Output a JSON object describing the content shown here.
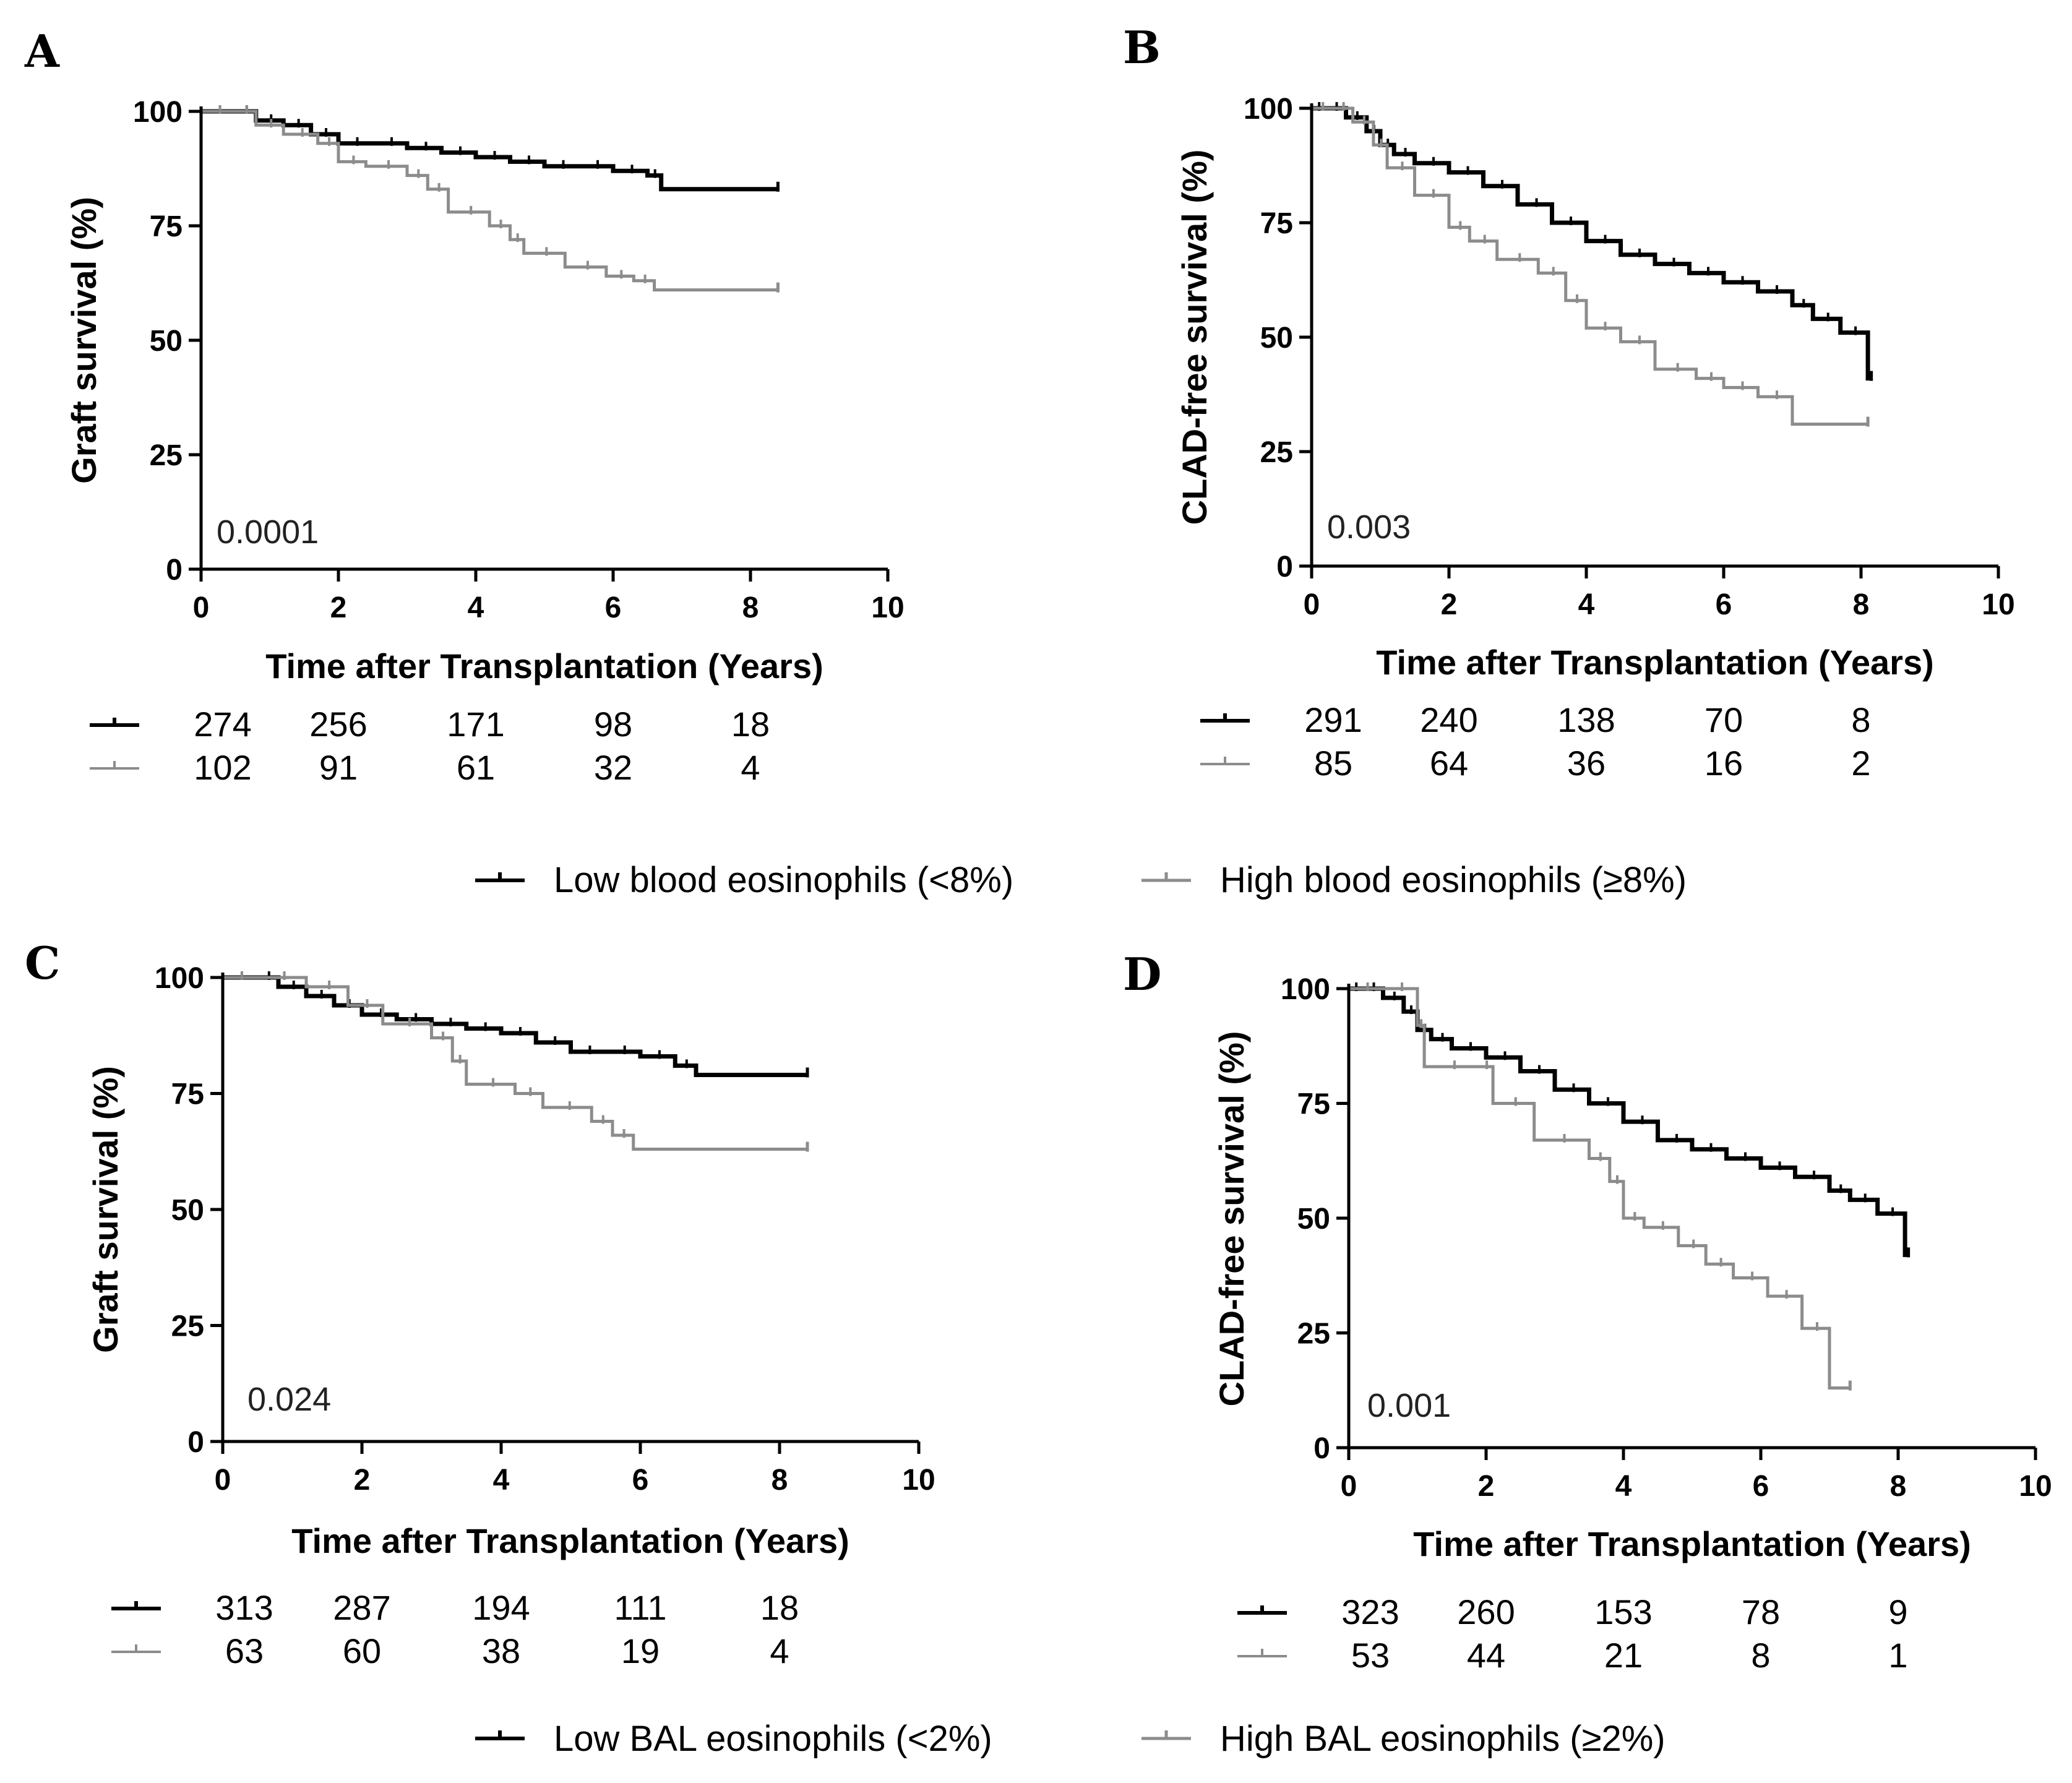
{
  "series_styles": {
    "low": {
      "color": "#000000",
      "width": 7
    },
    "high": {
      "color": "#8c8c8c",
      "width": 5
    }
  },
  "legends": [
    {
      "low_label": "Low blood eosinophils (<8%)",
      "high_label": "High blood eosinophils (≥8%)"
    },
    {
      "low_label": "Low BAL eosinophils (<2%)",
      "high_label": "High BAL eosinophils (≥2%)"
    }
  ],
  "chart_data": [
    {
      "panel": "A",
      "type": "line",
      "step": true,
      "xlabel": "Time after Transplantation (Years)",
      "ylabel": "Graft survival (%)",
      "xlim": [
        0,
        10
      ],
      "ylim": [
        0,
        100
      ],
      "xticks": [
        "0",
        "2",
        "4",
        "6",
        "8",
        "10"
      ],
      "yticks": [
        "0",
        "25",
        "50",
        "75",
        "100"
      ],
      "p_value": "0.0001",
      "series": [
        {
          "name": "Low blood eosinophils (<8%)",
          "x": [
            0,
            0.5,
            0.8,
            1.2,
            1.6,
            2.0,
            2.5,
            3.0,
            3.5,
            4.0,
            4.5,
            5.0,
            5.5,
            6.0,
            6.5,
            6.7,
            8.4
          ],
          "y": [
            100,
            100,
            98,
            97,
            95,
            93,
            93,
            92,
            91,
            90,
            89,
            88,
            88,
            87,
            86,
            83,
            83
          ]
        },
        {
          "name": "High blood eosinophils (≥8%)",
          "x": [
            0,
            0.5,
            0.8,
            1.2,
            1.7,
            2.0,
            2.4,
            3.0,
            3.3,
            3.6,
            4.2,
            4.5,
            4.7,
            5.3,
            5.9,
            6.3,
            6.6,
            8.4
          ],
          "y": [
            100,
            100,
            97,
            95,
            93,
            89,
            88,
            86,
            83,
            78,
            75,
            72,
            69,
            66,
            64,
            63,
            61,
            61
          ]
        }
      ],
      "risk_table": {
        "x": [
          0,
          2,
          4,
          6,
          8
        ],
        "low": [
          "274",
          "256",
          "171",
          "98",
          "18"
        ],
        "high": [
          "102",
          "91",
          "61",
          "32",
          "4"
        ]
      }
    },
    {
      "panel": "B",
      "type": "line",
      "step": true,
      "xlabel": "Time after Transplantation (Years)",
      "ylabel": "CLAD-free survival (%)",
      "xlim": [
        0,
        10
      ],
      "ylim": [
        0,
        100
      ],
      "xticks": [
        "0",
        "2",
        "4",
        "6",
        "8",
        "10"
      ],
      "yticks": [
        "0",
        "25",
        "50",
        "75",
        "100"
      ],
      "p_value": "0.003",
      "series": [
        {
          "name": "Low blood eosinophils (<8%)",
          "x": [
            0,
            0.2,
            0.5,
            0.8,
            1.0,
            1.2,
            1.5,
            2.0,
            2.5,
            3.0,
            3.5,
            4.0,
            4.5,
            5.0,
            5.5,
            6.0,
            6.5,
            7.0,
            7.3,
            7.7,
            8.1,
            8.15
          ],
          "y": [
            100,
            100,
            98,
            95,
            92,
            90,
            88,
            86,
            83,
            79,
            75,
            71,
            68,
            66,
            64,
            62,
            60,
            57,
            54,
            51,
            41,
            41
          ]
        },
        {
          "name": "High blood eosinophils (≥8%)",
          "x": [
            0,
            0.3,
            0.6,
            0.9,
            1.1,
            1.5,
            2.0,
            2.3,
            2.7,
            3.3,
            3.7,
            4.0,
            4.5,
            5.0,
            5.6,
            6.0,
            6.5,
            7.0,
            8.1
          ],
          "y": [
            100,
            100,
            97,
            92,
            87,
            81,
            74,
            71,
            67,
            64,
            58,
            52,
            49,
            43,
            41,
            39,
            37,
            31,
            31
          ]
        }
      ],
      "risk_table": {
        "x": [
          0,
          2,
          4,
          6,
          8
        ],
        "low": [
          "291",
          "240",
          "138",
          "70",
          "8"
        ],
        "high": [
          "85",
          "64",
          "36",
          "16",
          "2"
        ]
      }
    },
    {
      "panel": "C",
      "type": "line",
      "step": true,
      "xlabel": "Time after Transplantation (Years)",
      "ylabel": "Graft survival (%)",
      "xlim": [
        0,
        10
      ],
      "ylim": [
        0,
        100
      ],
      "xticks": [
        "0",
        "2",
        "4",
        "6",
        "8",
        "10"
      ],
      "yticks": [
        "0",
        "25",
        "50",
        "75",
        "100"
      ],
      "p_value": "0.024",
      "series": [
        {
          "name": "Low BAL eosinophils (<2%)",
          "x": [
            0,
            0.5,
            0.8,
            1.2,
            1.6,
            2.0,
            2.5,
            3.0,
            3.5,
            4.0,
            4.5,
            5.0,
            5.5,
            6.0,
            6.5,
            6.8,
            8.4
          ],
          "y": [
            100,
            100,
            98,
            96,
            94,
            92,
            91,
            90,
            89,
            88,
            86,
            84,
            84,
            83,
            81,
            79,
            79
          ]
        },
        {
          "name": "High BAL eosinophils (≥2%)",
          "x": [
            0,
            0.5,
            1.2,
            1.8,
            2.3,
            3.0,
            3.3,
            3.5,
            4.2,
            4.6,
            5.3,
            5.6,
            5.9,
            8.4
          ],
          "y": [
            100,
            100,
            98,
            94,
            90,
            87,
            82,
            77,
            75,
            72,
            69,
            66,
            63,
            63
          ]
        }
      ],
      "risk_table": {
        "x": [
          0,
          2,
          4,
          6,
          8
        ],
        "low": [
          "313",
          "287",
          "194",
          "111",
          "18"
        ],
        "high": [
          "63",
          "60",
          "38",
          "19",
          "4"
        ]
      }
    },
    {
      "panel": "D",
      "type": "line",
      "step": true,
      "xlabel": "Time after Transplantation (Years)",
      "ylabel": "CLAD-free survival (%)",
      "xlim": [
        0,
        10
      ],
      "ylim": [
        0,
        100
      ],
      "xticks": [
        "0",
        "2",
        "4",
        "6",
        "8",
        "10"
      ],
      "yticks": [
        "0",
        "25",
        "50",
        "75",
        "100"
      ],
      "p_value": "0.001",
      "series": [
        {
          "name": "Low BAL eosinophils (<2%)",
          "x": [
            0,
            0.2,
            0.5,
            0.8,
            1.0,
            1.2,
            1.5,
            2.0,
            2.5,
            3.0,
            3.5,
            4.0,
            4.5,
            5.0,
            5.5,
            6.0,
            6.5,
            7.0,
            7.3,
            7.7,
            8.1,
            8.15
          ],
          "y": [
            100,
            100,
            98,
            95,
            91,
            89,
            87,
            85,
            82,
            78,
            75,
            71,
            67,
            65,
            63,
            61,
            59,
            56,
            54,
            51,
            42,
            42
          ]
        },
        {
          "name": "High BAL eosinophils (≥2%)",
          "x": [
            0,
            0.5,
            1.0,
            1.1,
            1.9,
            2.1,
            2.7,
            3.5,
            3.8,
            4.0,
            4.3,
            4.8,
            5.2,
            5.6,
            6.1,
            6.6,
            7.0,
            7.3
          ],
          "y": [
            100,
            100,
            92,
            83,
            83,
            75,
            67,
            63,
            58,
            50,
            48,
            44,
            40,
            37,
            33,
            26,
            13,
            13
          ]
        }
      ],
      "risk_table": {
        "x": [
          0,
          2,
          4,
          6,
          8
        ],
        "low": [
          "323",
          "260",
          "153",
          "78",
          "9"
        ],
        "high": [
          "53",
          "44",
          "21",
          "8",
          "1"
        ]
      }
    }
  ]
}
